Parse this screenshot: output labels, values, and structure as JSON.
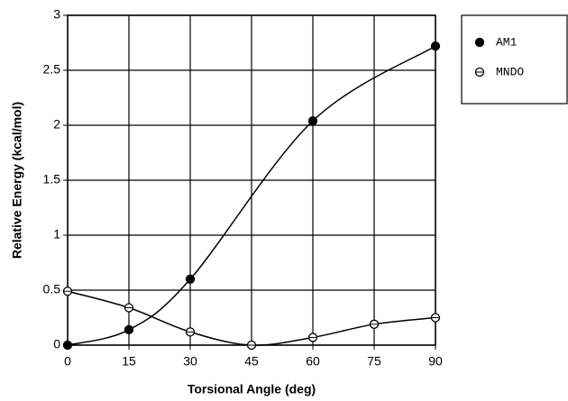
{
  "chart_data": {
    "type": "line",
    "xlabel": "Torsional Angle (deg)",
    "ylabel": "Relative Energy (kcal/mol)",
    "xlim": [
      0,
      90
    ],
    "xticks": [
      0,
      15,
      30,
      45,
      60,
      75,
      90
    ],
    "ylim": [
      0,
      3
    ],
    "yticks": [
      0,
      0.5,
      1,
      1.5,
      2,
      2.5,
      3
    ],
    "grid": true,
    "series": [
      {
        "name": "AM1",
        "color": "#000000",
        "marker": "filled",
        "x": [
          0,
          15,
          30,
          60,
          90
        ],
        "values": [
          0,
          0.14,
          0.6,
          2.04,
          2.72
        ]
      },
      {
        "name": "MNDO",
        "color": "#000000",
        "marker": "open",
        "x": [
          0,
          15,
          30,
          45,
          60,
          75,
          90
        ],
        "values": [
          0.49,
          0.34,
          0.12,
          0,
          0.07,
          0.19,
          0.25
        ]
      }
    ]
  }
}
